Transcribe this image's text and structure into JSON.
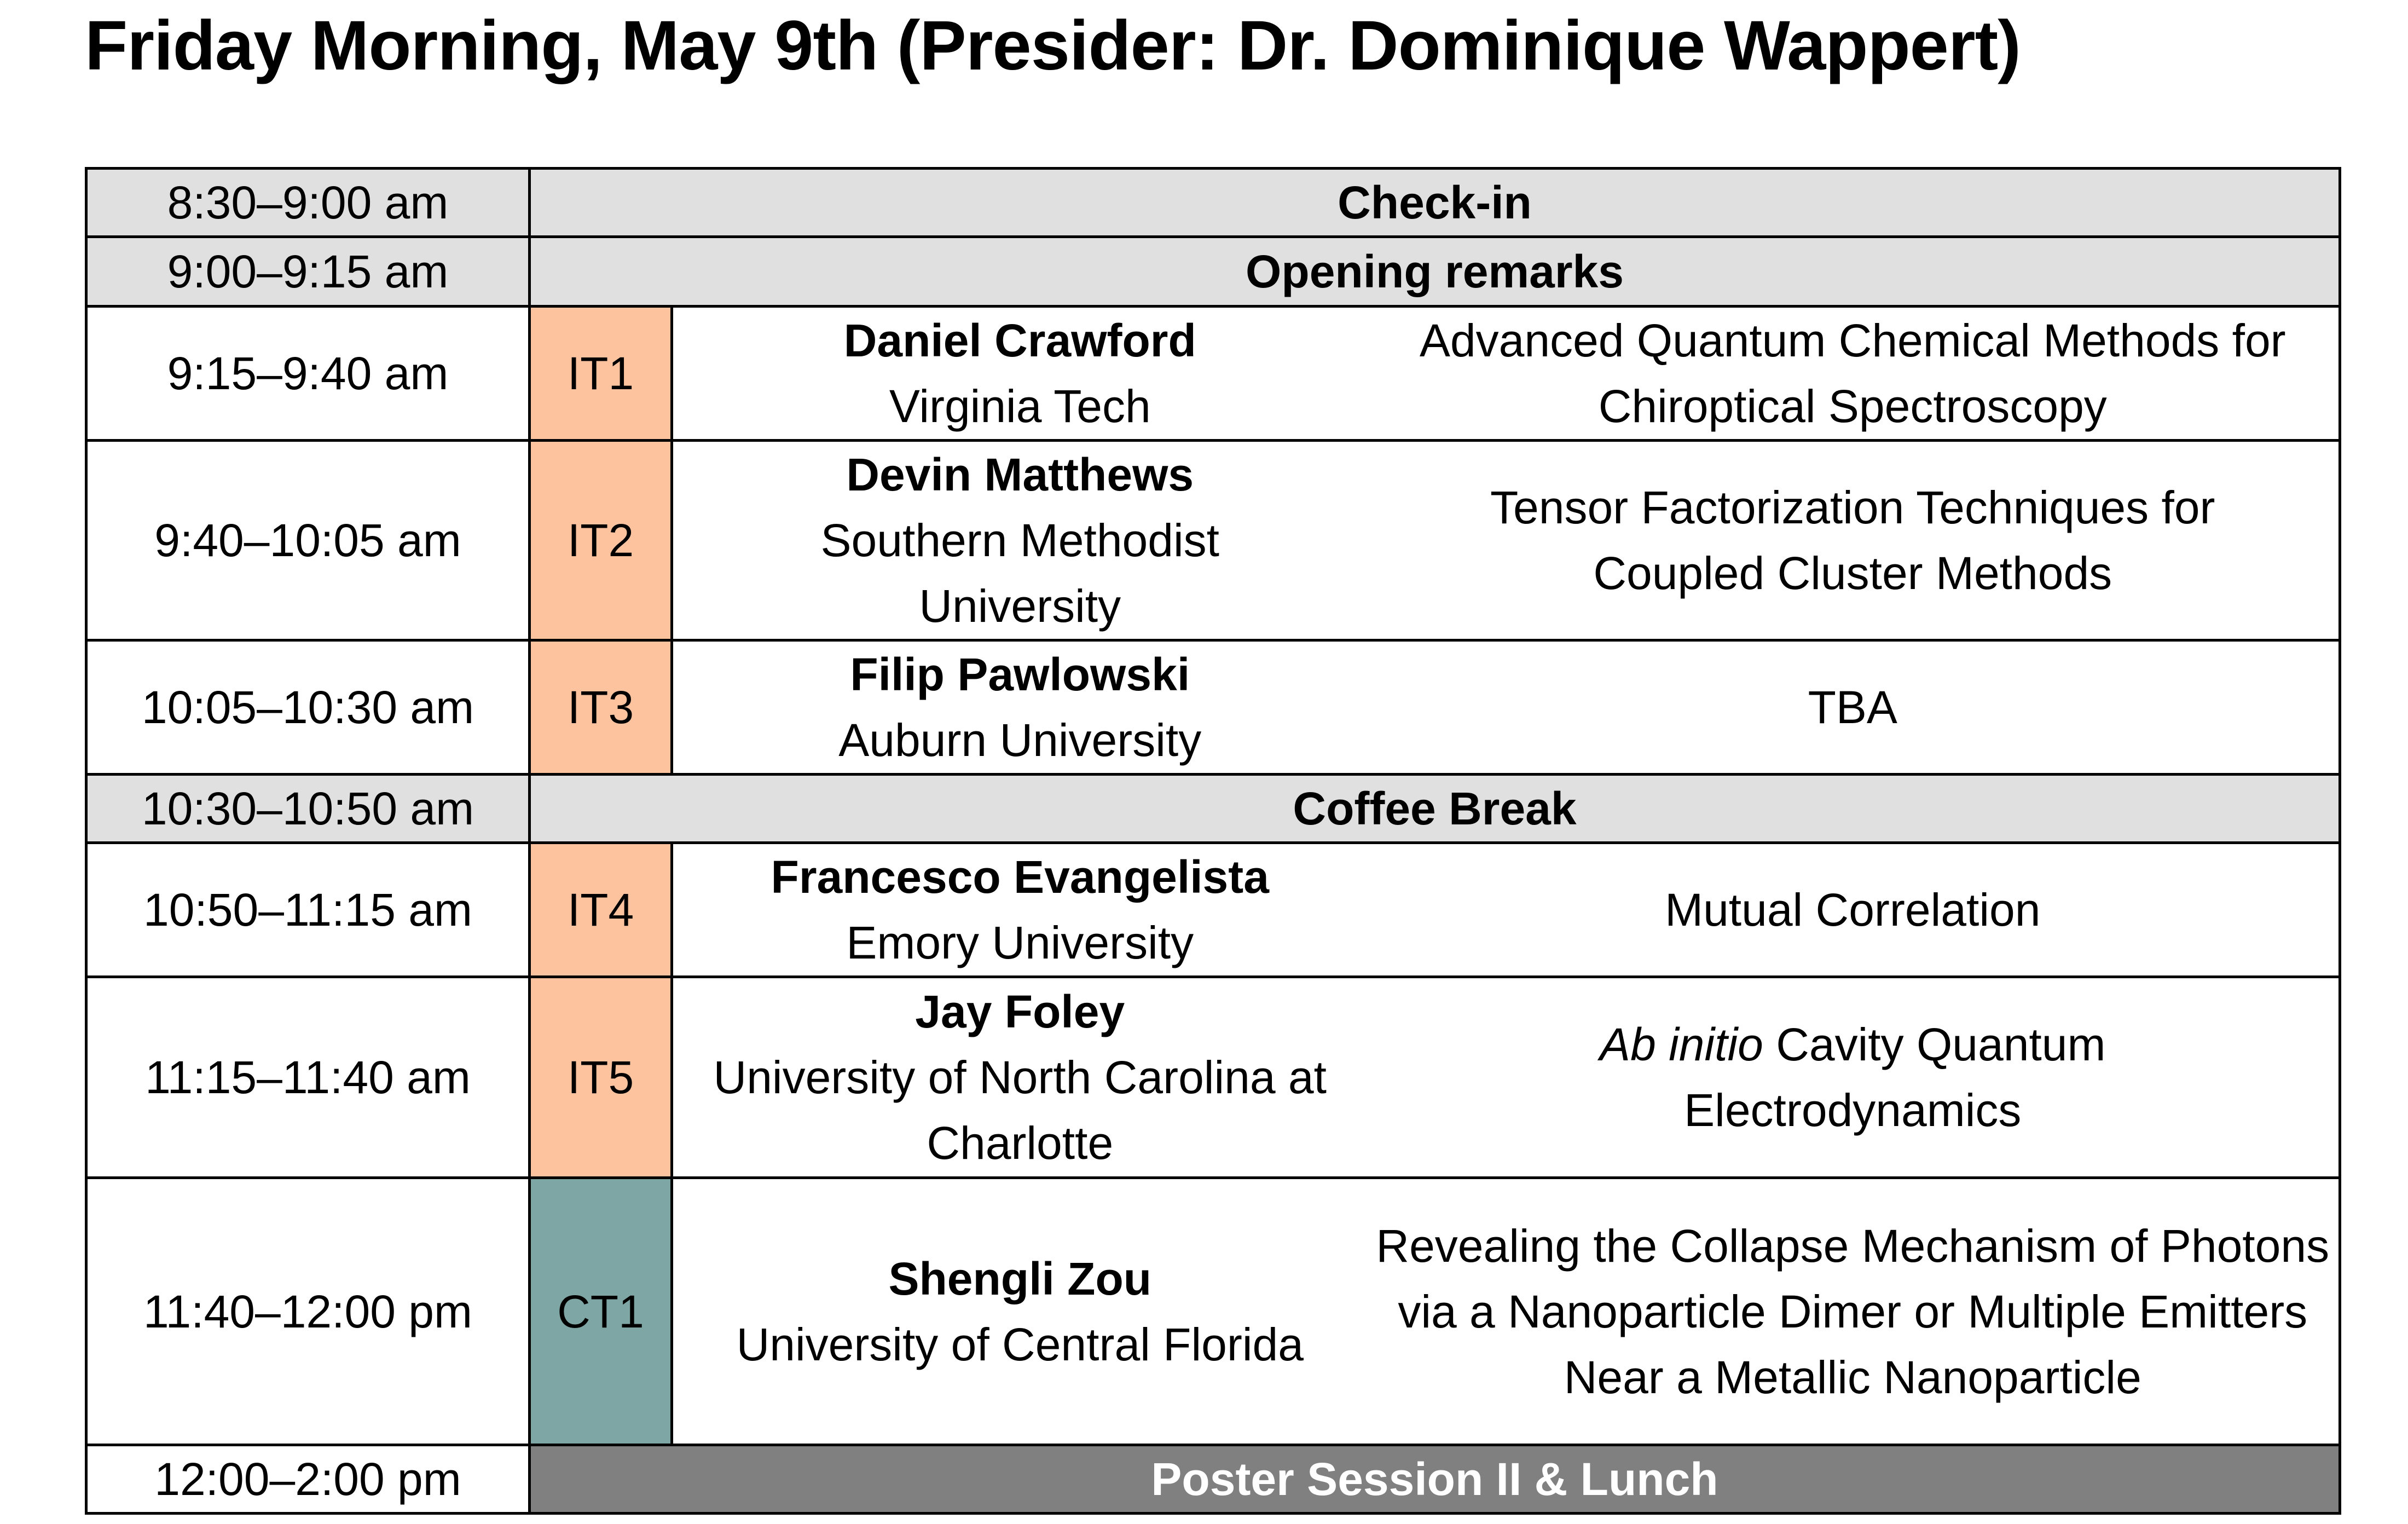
{
  "title": "Friday Morning, May 9th (Presider: Dr. Dominique Wappert)",
  "colors": {
    "header_gray": "#e0e0e0",
    "invited": "#fcc39e",
    "contributed": "#7da6a4",
    "poster": "#808080"
  },
  "rows": [
    {
      "time": "8:30–9:00 am",
      "event": "Check-in"
    },
    {
      "time": "9:00–9:15 am",
      "event": "Opening remarks"
    },
    {
      "time": "9:15–9:40 am",
      "code": "IT1",
      "name": "Daniel Crawford",
      "affiliation": "Virginia Tech",
      "talk": "Advanced Quantum Chemical Methods for Chiroptical Spectroscopy"
    },
    {
      "time": "9:40–10:05 am",
      "code": "IT2",
      "name": "Devin Matthews",
      "affiliation": "Southern Methodist University",
      "talk": "Tensor Factorization Techniques for Coupled Cluster Methods"
    },
    {
      "time": "10:05–10:30 am",
      "code": "IT3",
      "name": "Filip Pawlowski",
      "affiliation": "Auburn University",
      "talk": "TBA"
    },
    {
      "time": "10:30–10:50 am",
      "event": "Coffee Break"
    },
    {
      "time": "10:50–11:15 am",
      "code": "IT4",
      "name": "Francesco Evangelista",
      "affiliation": "Emory University",
      "talk": "Mutual Correlation"
    },
    {
      "time": "11:15–11:40 am",
      "code": "IT5",
      "name": "Jay Foley",
      "affiliation": "University of North Carolina at Charlotte",
      "talk_italic": "Ab initio",
      "talk": " Cavity Quantum Electrodynamics"
    },
    {
      "time": "11:40–12:00 pm",
      "code": "CT1",
      "name": "Shengli Zou",
      "affiliation": "University of Central Florida",
      "talk": "Revealing the Collapse Mechanism of Photons via a Nanoparticle Dimer or Multiple Emitters Near a Metallic Nanoparticle"
    },
    {
      "time": "12:00–2:00 pm",
      "event": "Poster Session II & Lunch"
    }
  ]
}
